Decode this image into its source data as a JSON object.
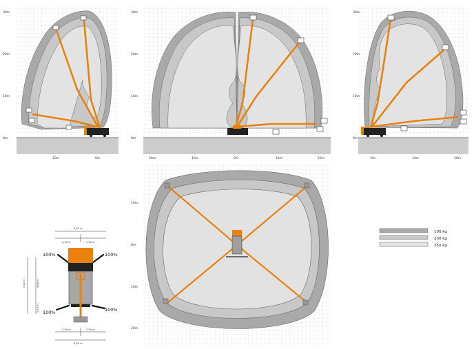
{
  "colors": {
    "boom": "#e8820c",
    "grid": "#d4d4d4",
    "ground": "#c9c9c9",
    "zone_100": "#a9a9a9",
    "zone_200": "#c8c8c8",
    "zone_350": "#e2e2e2",
    "chassis": "#222222"
  },
  "side_view_left": {
    "y_ticks": [
      "30m",
      "20m",
      "10m",
      "0m"
    ],
    "x_ticks": [
      "10m",
      "0m"
    ]
  },
  "side_view_center": {
    "y_ticks": [
      "30m",
      "20m",
      "10m",
      "0m"
    ],
    "x_ticks": [
      "20m",
      "10m",
      "0m",
      "10m",
      "20m"
    ]
  },
  "side_view_right": {
    "y_ticks": [
      "30m",
      "20m",
      "10m",
      "0m"
    ],
    "x_ticks": [
      "0m",
      "10m",
      "20m"
    ]
  },
  "top_view": {
    "y_ticks": [
      "10m",
      "0m",
      "10m",
      "20m"
    ]
  },
  "outrigger_dims": {
    "top_total": "5,00 m",
    "top_left": "2,50 m",
    "top_right": "2,50 m",
    "bottom_left": "2,50 m",
    "bottom_right": "2,50 m",
    "bottom_total": "5,00 m",
    "height_outer": "5,32 m",
    "height_inner": "5,84 m",
    "height_small": "0,33 m",
    "pct_top_left": "100%",
    "pct_top_right": "100%",
    "pct_bottom_left": "100%",
    "pct_bottom_right": "100%"
  },
  "legend": [
    {
      "label": "100 kg",
      "color": "#a9a9a9"
    },
    {
      "label": "200 kg",
      "color": "#c8c8c8"
    },
    {
      "label": "350 kg",
      "color": "#e2e2e2"
    }
  ]
}
